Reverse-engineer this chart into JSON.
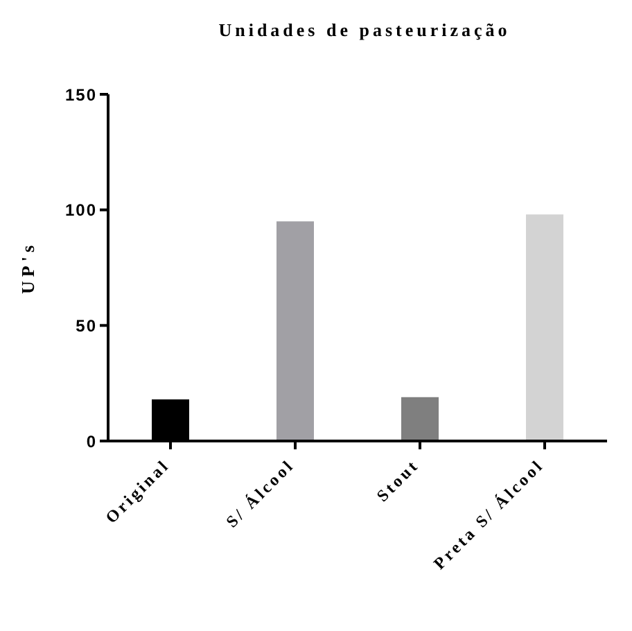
{
  "chart_data": {
    "type": "bar",
    "title": "Unidades de pasteurização",
    "ylabel": "UP's",
    "categories": [
      "Original",
      "S/ Álcool",
      "Stout",
      "Preta S/ Álcool"
    ],
    "values": [
      18,
      95,
      19,
      98
    ],
    "colors": [
      "#000000",
      "#a1a0a5",
      "#7f7f7f",
      "#d3d3d3"
    ],
    "ylim": [
      0,
      150
    ],
    "yticks": [
      0,
      50,
      100,
      150
    ],
    "grid": false,
    "legend": false
  }
}
